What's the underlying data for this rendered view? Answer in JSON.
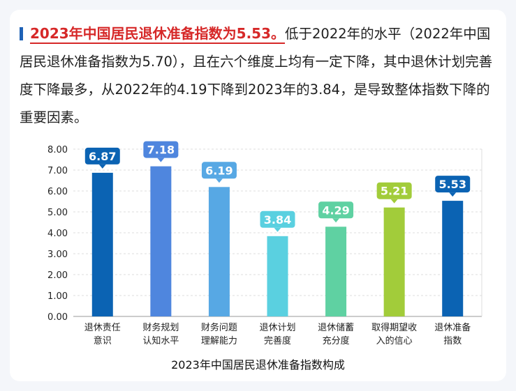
{
  "intro": {
    "highlight": "2023年中国居民退休准备指数为5.53。",
    "body": "低于2022年的水平（2022年中国居民退休准备指数为5.70），且在六个维度上均有一定下降，其中退休计划完善度下降最多，从2022年的4.19下降到2023年的3.84，是导致整体指数下降的重要因素。"
  },
  "colors": {
    "accent": "#d62828",
    "card_bg": "#ffffff",
    "page_bg": "#f4f6fa"
  },
  "chart_data": {
    "type": "bar",
    "title": "2023年中国居民退休准备指数构成",
    "xlabel": "",
    "ylabel": "",
    "ylim": [
      0,
      8
    ],
    "yticks": [
      "0.00",
      "1.00",
      "2.00",
      "3.00",
      "4.00",
      "5.00",
      "6.00",
      "7.00",
      "8.00"
    ],
    "grid": true,
    "categories": [
      [
        "退休责任",
        "意识"
      ],
      [
        "财务规划",
        "认知水平"
      ],
      [
        "财务问题",
        "理解能力"
      ],
      [
        "退休计划",
        "完善度"
      ],
      [
        "退休储蓄",
        "充分度"
      ],
      [
        "取得期望收",
        "入的信心"
      ],
      [
        "退休准备",
        "指数"
      ]
    ],
    "values": [
      6.87,
      7.18,
      6.19,
      3.84,
      4.29,
      5.21,
      5.53
    ],
    "data_labels": [
      "6.87",
      "7.18",
      "6.19",
      "3.84",
      "4.29",
      "5.21",
      "5.53"
    ],
    "colors": [
      "#0b63b3",
      "#4f86de",
      "#57a8e4",
      "#5ad0e0",
      "#5fd1a2",
      "#a2cc3a",
      "#0b63b3"
    ]
  }
}
